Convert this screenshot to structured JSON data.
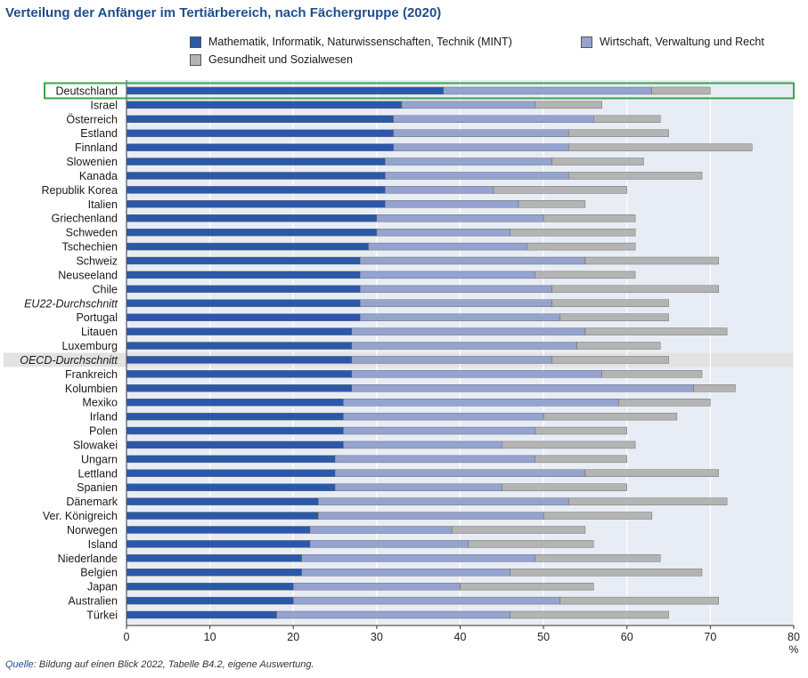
{
  "title": "Verteilung der Anfänger im Tertiärbereich, nach Fächergruppe (2020)",
  "colors": {
    "mint": "#2b58a9",
    "wirtschaft": "#95a3cf",
    "gesundheit": "#b4b4b4",
    "plot_bg": "#e8edf5",
    "highlight": "#3aa64a",
    "oecd_band": "#e2e2e2"
  },
  "legend": [
    {
      "key": "mint",
      "label": "Mathematik, Informatik, Naturwissenschaften, Technik (MINT)"
    },
    {
      "key": "wirtschaft",
      "label": "Wirtschaft, Verwaltung und Recht"
    },
    {
      "key": "gesundheit",
      "label": "Gesundheit und Sozialwesen"
    }
  ],
  "source": {
    "label": "Quelle:",
    "text": " Bildung auf einen Blick 2022, Tabelle B4.2, eigene Auswertung."
  },
  "chart_data": {
    "type": "bar",
    "orientation": "horizontal",
    "stacked": true,
    "xlim": [
      0,
      80
    ],
    "xticks": [
      0,
      10,
      20,
      30,
      40,
      50,
      60,
      70,
      80
    ],
    "xunit": "%",
    "grid": true,
    "legend_position": "top",
    "highlighted": [
      "Deutschland"
    ],
    "italic_categories": [
      "EU22-Durchschnitt",
      "OECD-Durchschnitt"
    ],
    "banded_categories": [
      "OECD-Durchschnitt"
    ],
    "categories": [
      "Deutschland",
      "Israel",
      "Österreich",
      "Estland",
      "Finnland",
      "Slowenien",
      "Kanada",
      "Republik Korea",
      "Italien",
      "Griechenland",
      "Schweden",
      "Tschechien",
      "Schweiz",
      "Neuseeland",
      "Chile",
      "EU22-Durchschnitt",
      "Portugal",
      "Litauen",
      "Luxemburg",
      "OECD-Durchschnitt",
      "Frankreich",
      "Kolumbien",
      "Mexiko",
      "Irland",
      "Polen",
      "Slowakei",
      "Ungarn",
      "Lettland",
      "Spanien",
      "Dänemark",
      "Ver. Königreich",
      "Norwegen",
      "Island",
      "Niederlande",
      "Belgien",
      "Japan",
      "Australien",
      "Türkei"
    ],
    "series": [
      {
        "name": "Mathematik, Informatik, Naturwissenschaften, Technik (MINT)",
        "color": "#2b58a9",
        "values": [
          38,
          33,
          32,
          32,
          32,
          31,
          31,
          31,
          31,
          30,
          30,
          29,
          28,
          28,
          28,
          28,
          28,
          27,
          27,
          27,
          27,
          27,
          26,
          26,
          26,
          26,
          25,
          25,
          25,
          23,
          23,
          22,
          22,
          21,
          21,
          20,
          20,
          18
        ]
      },
      {
        "name": "Wirtschaft, Verwaltung und Recht",
        "color": "#95a3cf",
        "values": [
          25,
          16,
          24,
          21,
          21,
          20,
          22,
          13,
          16,
          20,
          16,
          19,
          27,
          21,
          23,
          23,
          24,
          28,
          27,
          24,
          30,
          41,
          33,
          24,
          23,
          19,
          24,
          30,
          20,
          30,
          27,
          17,
          19,
          28,
          25,
          20,
          32,
          28
        ]
      },
      {
        "name": "Gesundheit und Sozialwesen",
        "color": "#b4b4b4",
        "values": [
          7,
          8,
          8,
          12,
          22,
          11,
          16,
          16,
          8,
          11,
          15,
          13,
          16,
          12,
          20,
          14,
          13,
          17,
          10,
          14,
          12,
          5,
          11,
          16,
          11,
          16,
          11,
          16,
          15,
          19,
          13,
          16,
          15,
          15,
          23,
          16,
          19,
          19
        ]
      }
    ]
  }
}
